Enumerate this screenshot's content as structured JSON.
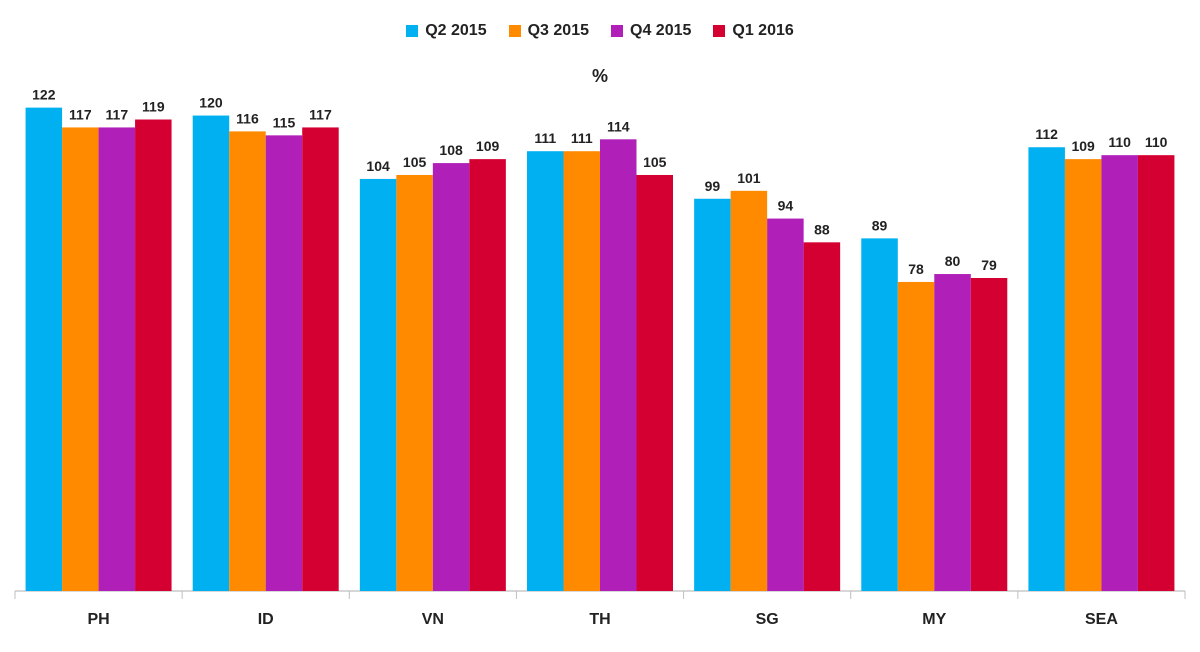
{
  "chart_data": {
    "type": "bar",
    "ylabel": "%",
    "ylim": [
      0,
      132
    ],
    "grid": false,
    "legend_position": "top-center",
    "categories": [
      "PH",
      "ID",
      "VN",
      "TH",
      "SG",
      "MY",
      "SEA"
    ],
    "series": [
      {
        "name": "Q2 2015",
        "color": "#00B0F0",
        "values": [
          122,
          120,
          104,
          111,
          99,
          89,
          112
        ]
      },
      {
        "name": "Q3 2015",
        "color": "#FF8A00",
        "values": [
          117,
          116,
          105,
          111,
          101,
          78,
          109
        ]
      },
      {
        "name": "Q4 2015",
        "color": "#B01FB8",
        "values": [
          117,
          115,
          108,
          114,
          94,
          80,
          110
        ]
      },
      {
        "name": "Q1 2016",
        "color": "#D50032",
        "values": [
          119,
          117,
          109,
          105,
          88,
          79,
          110
        ]
      }
    ]
  }
}
